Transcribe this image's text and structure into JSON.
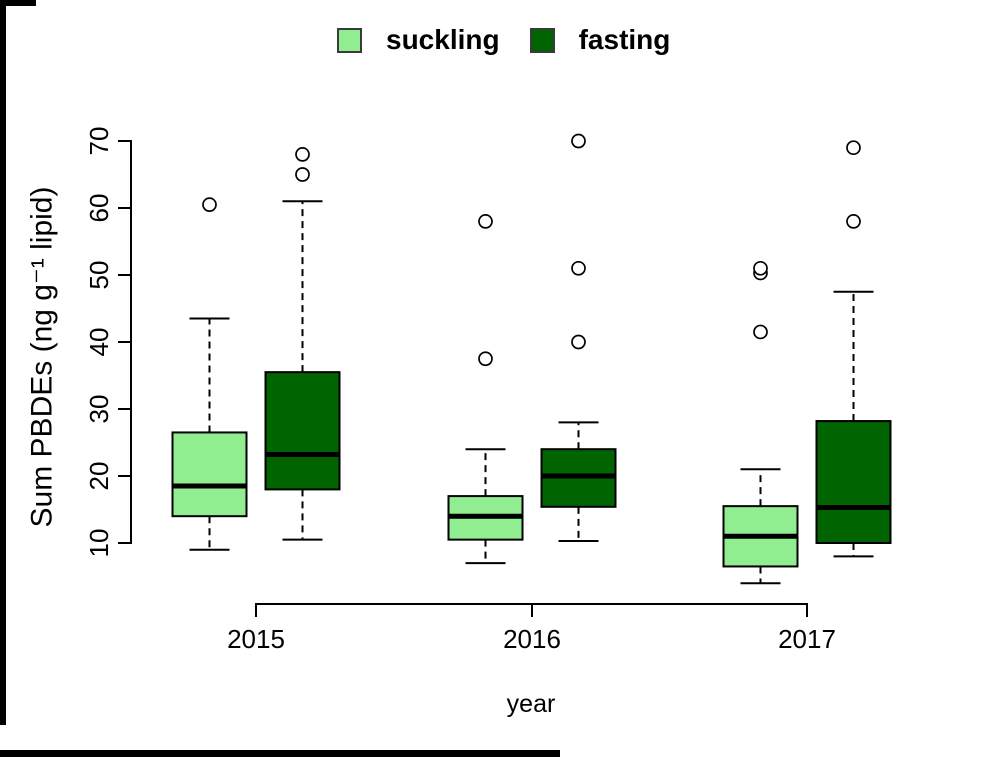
{
  "legend": {
    "items": [
      {
        "label": "suckling",
        "color": "#90EE90"
      },
      {
        "label": "fasting",
        "color": "#006400"
      }
    ]
  },
  "chart_data": {
    "type": "boxplot",
    "title": "",
    "xlabel": "year",
    "ylabel": "Sum PBDEs (ng g⁻¹ lipid)",
    "categories": [
      "2015",
      "2016",
      "2017"
    ],
    "y_ticks": [
      10,
      20,
      30,
      40,
      50,
      60,
      70
    ],
    "ylim": [
      2.5,
      71.5
    ],
    "grid": false,
    "legend_position": "top-center",
    "axis_color": "#000000",
    "box_edge_color": "#000000",
    "series": [
      {
        "name": "suckling",
        "color": "#90EE90",
        "boxes": [
          {
            "category": "2015",
            "whisker_low": 9,
            "q1": 14,
            "median": 18.5,
            "q3": 26.5,
            "whisker_high": 43.5,
            "outliers": [
              60.5
            ]
          },
          {
            "category": "2016",
            "whisker_low": 7,
            "q1": 10.5,
            "median": 14,
            "q3": 17,
            "whisker_high": 24,
            "outliers": [
              37.5,
              58
            ]
          },
          {
            "category": "2017",
            "whisker_low": 4,
            "q1": 6.5,
            "median": 11,
            "q3": 15.5,
            "whisker_high": 21,
            "outliers": [
              41.5,
              50.3,
              51
            ]
          }
        ]
      },
      {
        "name": "fasting",
        "color": "#006400",
        "boxes": [
          {
            "category": "2015",
            "whisker_low": 10.5,
            "q1": 18,
            "median": 23.2,
            "q3": 35.5,
            "whisker_high": 61,
            "outliers": [
              65,
              68
            ]
          },
          {
            "category": "2016",
            "whisker_low": 10.3,
            "q1": 15.4,
            "median": 20,
            "q3": 24,
            "whisker_high": 28,
            "outliers": [
              40,
              51,
              70
            ]
          },
          {
            "category": "2017",
            "whisker_low": 8,
            "q1": 10,
            "median": 15.3,
            "q3": 28.2,
            "whisker_high": 47.5,
            "outliers": [
              58,
              69
            ]
          }
        ]
      }
    ]
  }
}
